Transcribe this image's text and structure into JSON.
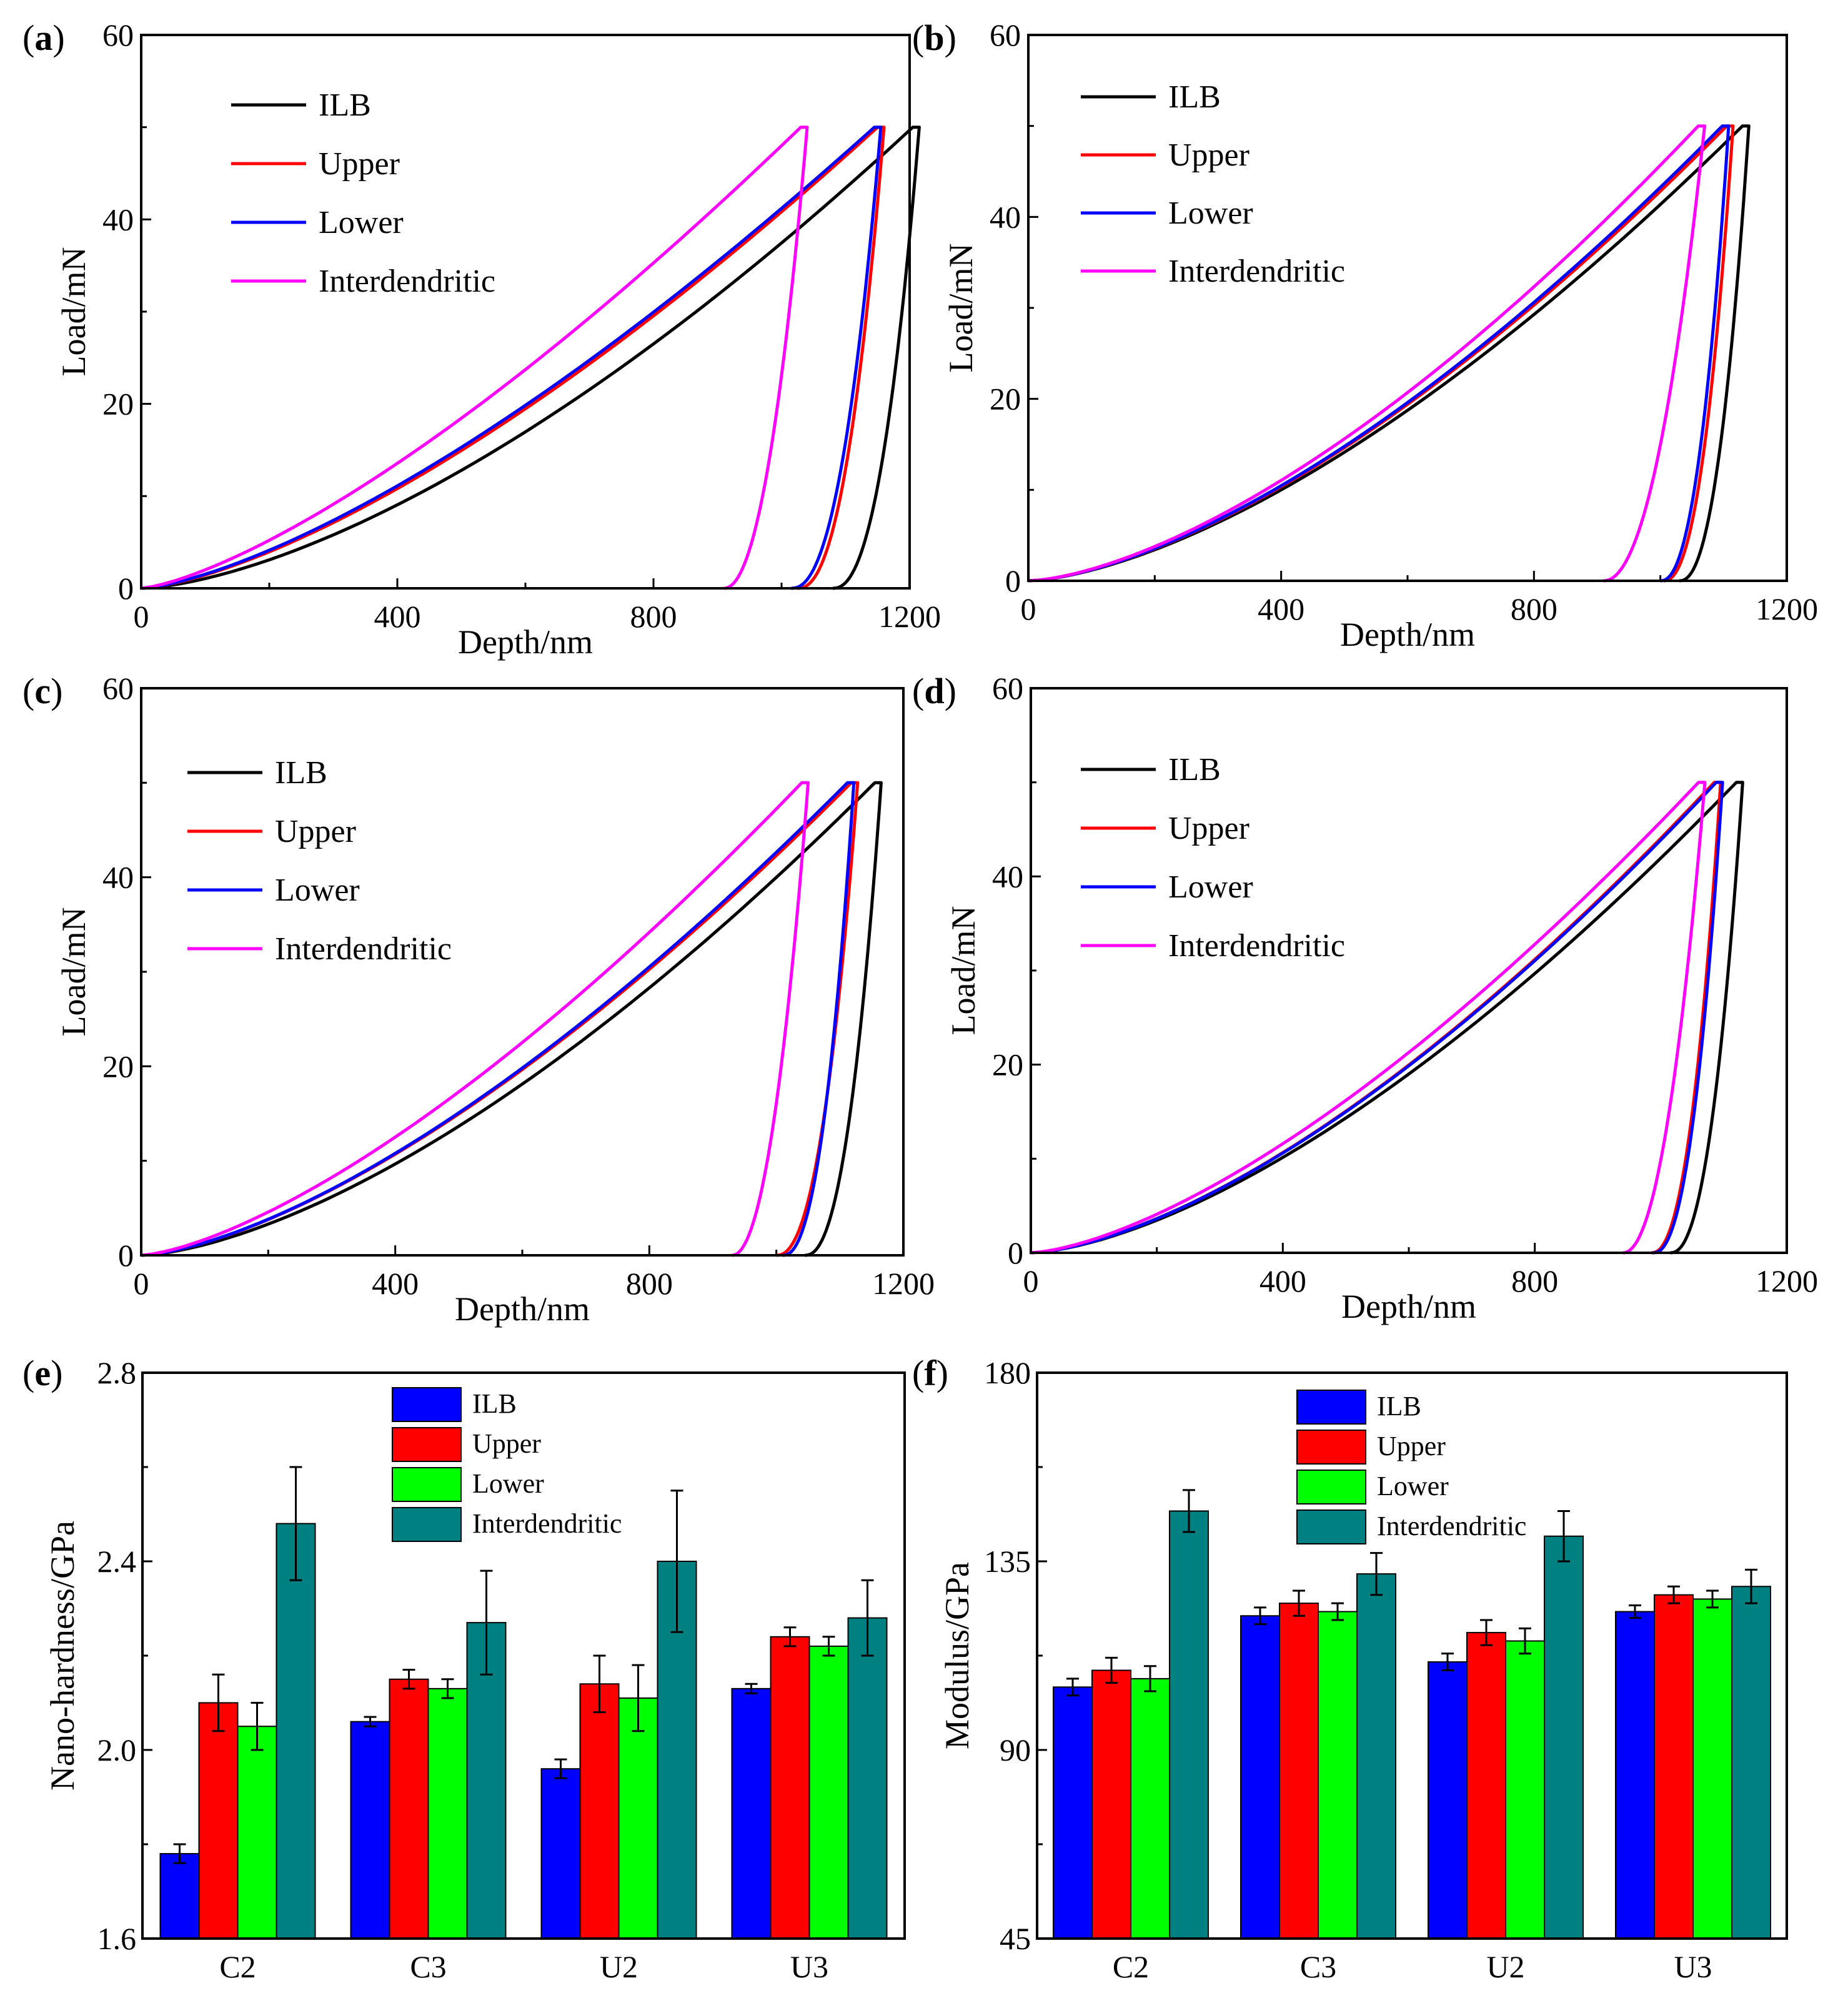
{
  "colors": {
    "ILB": "#000000",
    "Upper": "#ff0000",
    "Lower": "#0000ff",
    "Interdendritic": "#ff00ff"
  },
  "bar_colors": {
    "ILB": "#0000ff",
    "Upper": "#ff0000",
    "Lower": "#00ff00",
    "Interdendritic": "#008080"
  },
  "chart_data": [
    {
      "id": "a",
      "panel_letter": "a",
      "type": "line",
      "xlabel": "Depth/nm",
      "ylabel": "Load/mN",
      "xlim": [
        0,
        1200
      ],
      "ylim": [
        0,
        60
      ],
      "xticks": [
        0,
        400,
        800,
        1200
      ],
      "yticks": [
        0,
        20,
        40,
        60
      ],
      "legend": [
        "ILB",
        "Upper",
        "Lower",
        "Interdendritic"
      ],
      "series": [
        {
          "name": "ILB",
          "max_depth": 1205,
          "max_load": 50,
          "load_exp": 1.55,
          "unload_end": 1080,
          "unload_exp": 2.3
        },
        {
          "name": "Upper",
          "max_depth": 1150,
          "max_load": 50,
          "load_exp": 1.45,
          "unload_end": 1025,
          "unload_exp": 2.3
        },
        {
          "name": "Lower",
          "max_depth": 1145,
          "max_load": 50,
          "load_exp": 1.43,
          "unload_end": 1015,
          "unload_exp": 2.3
        },
        {
          "name": "Interdendritic",
          "max_depth": 1030,
          "max_load": 50,
          "load_exp": 1.38,
          "unload_end": 910,
          "unload_exp": 2.1
        }
      ]
    },
    {
      "id": "b",
      "panel_letter": "b",
      "type": "line",
      "xlabel": "Depth/nm",
      "ylabel": "Load/mN",
      "xlim": [
        0,
        1200
      ],
      "ylim": [
        0,
        60
      ],
      "xticks": [
        0,
        400,
        800,
        1200
      ],
      "yticks": [
        0,
        20,
        40,
        60
      ],
      "legend": [
        "ILB",
        "Upper",
        "Lower",
        "Interdendritic"
      ],
      "series": [
        {
          "name": "ILB",
          "max_depth": 1130,
          "max_load": 50,
          "load_exp": 1.55,
          "unload_end": 1030,
          "unload_exp": 2.3
        },
        {
          "name": "Upper",
          "max_depth": 1105,
          "max_load": 50,
          "load_exp": 1.55,
          "unload_end": 1005,
          "unload_exp": 2.3
        },
        {
          "name": "Lower",
          "max_depth": 1098,
          "max_load": 50,
          "load_exp": 1.55,
          "unload_end": 1000,
          "unload_exp": 2.3
        },
        {
          "name": "Interdendritic",
          "max_depth": 1060,
          "max_load": 50,
          "load_exp": 1.55,
          "unload_end": 910,
          "unload_exp": 2.1
        }
      ]
    },
    {
      "id": "c",
      "panel_letter": "c",
      "type": "line",
      "xlabel": "Depth/nm",
      "ylabel": "Load/mN",
      "xlim": [
        0,
        1200
      ],
      "ylim": [
        0,
        60
      ],
      "xticks": [
        0,
        400,
        800,
        1200
      ],
      "yticks": [
        0,
        20,
        40,
        60
      ],
      "legend": [
        "ILB",
        "Upper",
        "Lower",
        "Interdendritic"
      ],
      "series": [
        {
          "name": "ILB",
          "max_depth": 1155,
          "max_load": 50,
          "load_exp": 1.55,
          "unload_end": 1045,
          "unload_exp": 2.3
        },
        {
          "name": "Upper",
          "max_depth": 1118,
          "max_load": 50,
          "load_exp": 1.5,
          "unload_end": 1000,
          "unload_exp": 2.3
        },
        {
          "name": "Lower",
          "max_depth": 1112,
          "max_load": 50,
          "load_exp": 1.5,
          "unload_end": 1010,
          "unload_exp": 2.3
        },
        {
          "name": "Interdendritic",
          "max_depth": 1040,
          "max_load": 50,
          "load_exp": 1.45,
          "unload_end": 930,
          "unload_exp": 2.1
        }
      ]
    },
    {
      "id": "d",
      "panel_letter": "d",
      "type": "line",
      "xlabel": "Depth/nm",
      "ylabel": "Load/mN",
      "xlim": [
        0,
        1200
      ],
      "ylim": [
        0,
        60
      ],
      "xticks": [
        0,
        400,
        800,
        1200
      ],
      "yticks": [
        0,
        20,
        40,
        60
      ],
      "legend": [
        "ILB",
        "Upper",
        "Lower",
        "Interdendritic"
      ],
      "series": [
        {
          "name": "ILB",
          "max_depth": 1120,
          "max_load": 50,
          "load_exp": 1.55,
          "unload_end": 1015,
          "unload_exp": 2.3
        },
        {
          "name": "Upper",
          "max_depth": 1085,
          "max_load": 50,
          "load_exp": 1.55,
          "unload_end": 985,
          "unload_exp": 2.3
        },
        {
          "name": "Lower",
          "max_depth": 1088,
          "max_load": 50,
          "load_exp": 1.55,
          "unload_end": 988,
          "unload_exp": 2.3
        },
        {
          "name": "Interdendritic",
          "max_depth": 1060,
          "max_load": 50,
          "load_exp": 1.5,
          "unload_end": 940,
          "unload_exp": 2.1
        }
      ]
    },
    {
      "id": "e",
      "panel_letter": "e",
      "type": "bar",
      "ylabel": "Nano-hardness/GPa",
      "categories": [
        "C2",
        "C3",
        "U2",
        "U3"
      ],
      "ylim": [
        1.6,
        2.8
      ],
      "yticks": [
        "1.6",
        "2.0",
        "2.4",
        "2.8"
      ],
      "legend": [
        "ILB",
        "Upper",
        "Lower",
        "Interdendritic"
      ],
      "series": [
        {
          "name": "ILB",
          "values": [
            1.78,
            2.06,
            1.96,
            2.13
          ],
          "errors": [
            0.02,
            0.01,
            0.02,
            0.01
          ]
        },
        {
          "name": "Upper",
          "values": [
            2.1,
            2.15,
            2.14,
            2.24
          ],
          "errors": [
            0.06,
            0.02,
            0.06,
            0.02
          ]
        },
        {
          "name": "Lower",
          "values": [
            2.05,
            2.13,
            2.11,
            2.22
          ],
          "errors": [
            0.05,
            0.02,
            0.07,
            0.02
          ]
        },
        {
          "name": "Interdendritic",
          "values": [
            2.48,
            2.27,
            2.4,
            2.28
          ],
          "errors": [
            0.12,
            0.11,
            0.15,
            0.08
          ]
        }
      ]
    },
    {
      "id": "f",
      "panel_letter": "f",
      "type": "bar",
      "ylabel": "Modulus/GPa",
      "categories": [
        "C2",
        "C3",
        "U2",
        "U3"
      ],
      "ylim": [
        45,
        180
      ],
      "yticks": [
        "45",
        "90",
        "135",
        "180"
      ],
      "legend": [
        "ILB",
        "Upper",
        "Lower",
        "Interdendritic"
      ],
      "series": [
        {
          "name": "ILB",
          "values": [
            105,
            122,
            111,
            123
          ],
          "errors": [
            2,
            2,
            2,
            1.5
          ]
        },
        {
          "name": "Upper",
          "values": [
            109,
            125,
            118,
            127
          ],
          "errors": [
            3,
            3,
            3,
            2
          ]
        },
        {
          "name": "Lower",
          "values": [
            107,
            123,
            116,
            126
          ],
          "errors": [
            3,
            2,
            3,
            2
          ]
        },
        {
          "name": "Interdendritic",
          "values": [
            147,
            132,
            141,
            129
          ],
          "errors": [
            5,
            5,
            6,
            4
          ]
        }
      ]
    }
  ]
}
